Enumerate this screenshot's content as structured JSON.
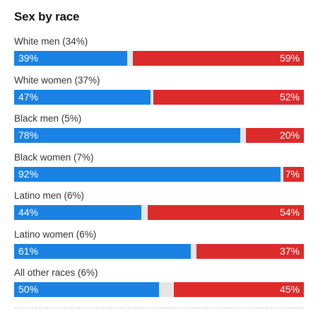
{
  "chart_data": {
    "type": "bar",
    "title": "Sex by race",
    "categories": [
      "White men (34%)",
      "White women (37%)",
      "Black men (5%)",
      "Black women (7%)",
      "Latino men (6%)",
      "Latino women (6%)",
      "All other races (6%)"
    ],
    "series": [
      {
        "values": [
          39,
          47,
          78,
          92,
          44,
          61,
          50
        ],
        "labels": [
          "39%",
          "47%",
          "78%",
          "92%",
          "44%",
          "61%",
          "50%"
        ],
        "color": "#1a82e2"
      },
      {
        "values": [
          59,
          52,
          20,
          7,
          54,
          37,
          45
        ],
        "labels": [
          "59%",
          "52%",
          "20%",
          "7%",
          "54%",
          "37%",
          "45%"
        ],
        "color": "#dd2a2a"
      }
    ],
    "ylim": [
      0,
      100
    ],
    "other_color": "#e5e5e5"
  }
}
